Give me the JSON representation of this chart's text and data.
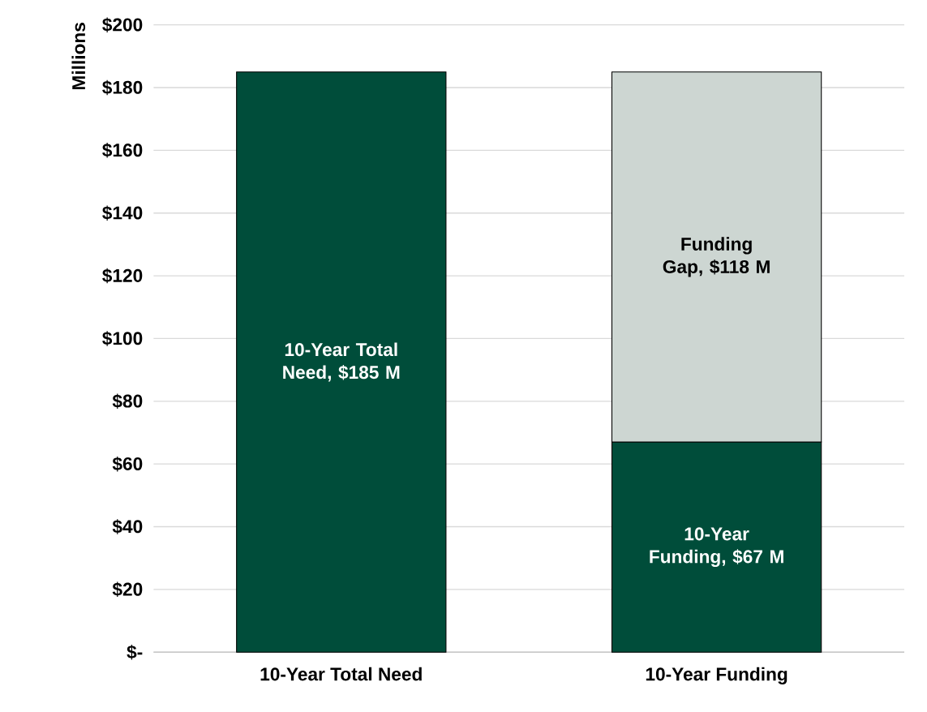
{
  "chart_data": {
    "type": "bar",
    "stacked": true,
    "ylabel": "Millions",
    "categories": [
      "10-Year Total Need",
      "10-Year Funding"
    ],
    "series": [
      {
        "color": "#004d3a",
        "values": [
          185,
          67
        ],
        "value_labels": [
          "10-Year Total Need,  $185 M",
          "10-Year Funding, $67 M"
        ]
      },
      {
        "color": "#cdd6d2",
        "values": [
          null,
          118
        ],
        "value_labels": [
          null,
          "Funding Gap, $118 M"
        ]
      }
    ],
    "ylim": [
      0,
      200
    ],
    "yticks": [
      {
        "value": 0,
        "label": "$-"
      },
      {
        "value": 20,
        "label": "$20"
      },
      {
        "value": 40,
        "label": "$40"
      },
      {
        "value": 60,
        "label": "$60"
      },
      {
        "value": 80,
        "label": "$80"
      },
      {
        "value": 100,
        "label": "$100"
      },
      {
        "value": 120,
        "label": "$120"
      },
      {
        "value": 140,
        "label": "$140"
      },
      {
        "value": 160,
        "label": "$160"
      },
      {
        "value": 180,
        "label": "$180"
      },
      {
        "value": 200,
        "label": "$200"
      }
    ],
    "grid": "y"
  }
}
